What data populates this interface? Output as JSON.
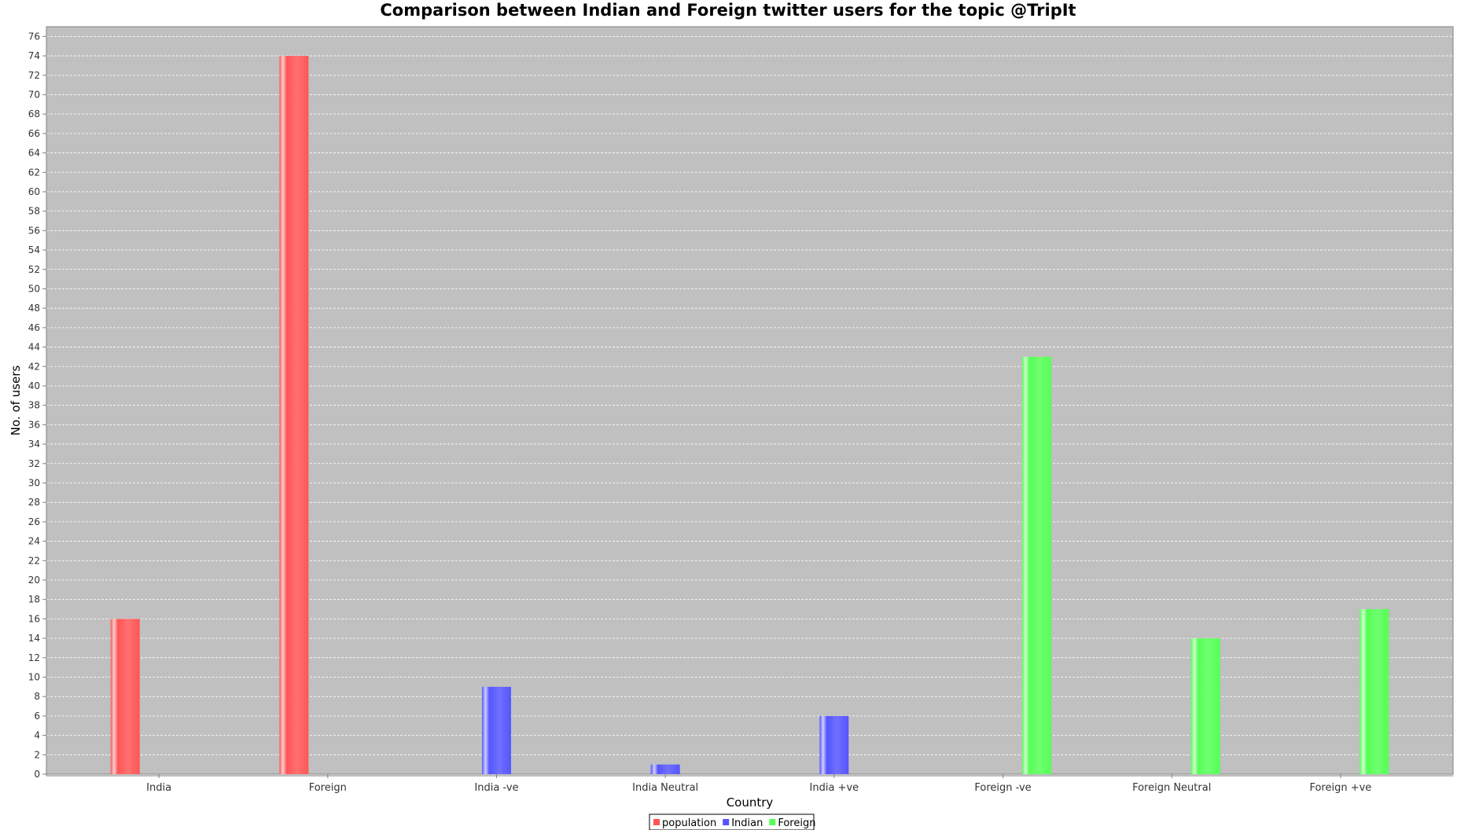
{
  "chart_data": {
    "type": "bar",
    "title": "Comparison between Indian and Foreign twitter users for the topic @TripIt",
    "xlabel": "Country",
    "ylabel": "No. of users",
    "ylim": [
      0,
      77
    ],
    "ytick_step": 2,
    "grid": true,
    "legend_position": "bottom-center",
    "categories": [
      "India",
      "Foreign",
      "India -ve",
      "India Neutral",
      "India +ve",
      "Foreign -ve",
      "Foreign Neutral",
      "Foreign +ve"
    ],
    "series": [
      {
        "name": "population",
        "color": "#ff5555",
        "values": [
          16,
          74,
          0,
          0,
          0,
          0,
          0,
          0
        ]
      },
      {
        "name": "Indian",
        "color": "#5555ff",
        "values": [
          0,
          0,
          9,
          1,
          6,
          0,
          0,
          0
        ]
      },
      {
        "name": "Foreign",
        "color": "#55ff55",
        "values": [
          0,
          0,
          0,
          0,
          0,
          43,
          14,
          17
        ]
      }
    ],
    "plot_background": "#c0c0c0"
  }
}
